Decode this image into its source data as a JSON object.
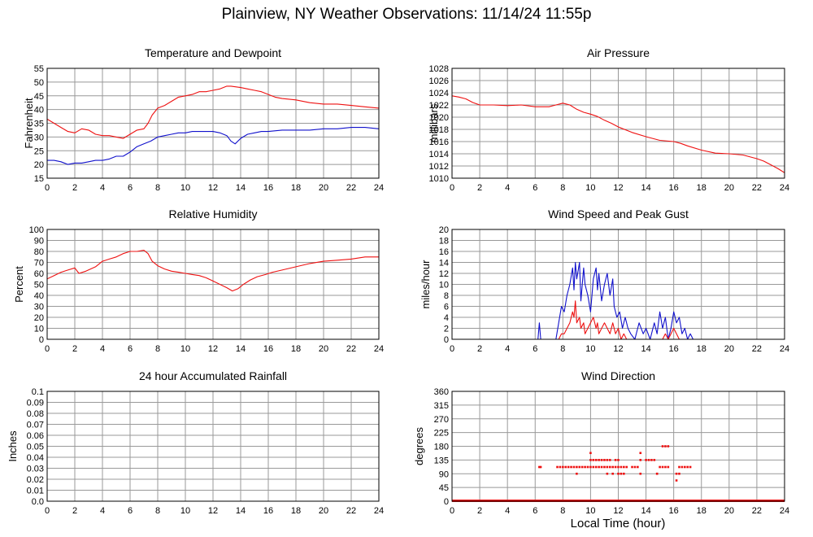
{
  "page": {
    "title": "Plainview, NY Weather Observations: 11/14/24 11:55p",
    "xlabel": "Local Time (hour)"
  },
  "colors": {
    "primary": "#ee1111",
    "secondary": "#1111cc",
    "grid": "#999999"
  },
  "chart_data": [
    {
      "type": "line",
      "title": "Temperature and Dewpoint",
      "ylabel": "Fahrenheit",
      "xlim": [
        0,
        24
      ],
      "ylim": [
        15,
        55
      ],
      "xticks": [
        0,
        2,
        4,
        6,
        8,
        10,
        12,
        14,
        16,
        18,
        20,
        22,
        24
      ],
      "yticks": [
        15,
        20,
        25,
        30,
        35,
        40,
        45,
        50,
        55
      ],
      "grid": true,
      "series": [
        {
          "color": "#ee1111",
          "x": [
            0,
            0.5,
            1,
            1.5,
            2,
            2.5,
            3,
            3.5,
            4,
            4.5,
            5,
            5.5,
            6,
            6.5,
            7,
            7.3,
            7.6,
            8,
            8.5,
            9,
            9.5,
            10,
            10.5,
            11,
            11.5,
            12,
            12.5,
            13,
            13.3,
            14,
            14.5,
            15,
            15.5,
            16,
            16.5,
            17,
            18,
            19,
            20,
            21,
            22,
            23,
            24
          ],
          "y": [
            36.5,
            35,
            33.5,
            32,
            31.5,
            33,
            32.5,
            31,
            30.5,
            30.5,
            30,
            29.5,
            31,
            32.5,
            33,
            35,
            38,
            40.5,
            41.5,
            43,
            44.5,
            45,
            45.5,
            46.5,
            46.5,
            47,
            47.5,
            48.5,
            48.5,
            48,
            47.5,
            47,
            46.5,
            45.5,
            44.5,
            44,
            43.5,
            42.5,
            42,
            42,
            41.5,
            41,
            40.5
          ]
        },
        {
          "color": "#1111cc",
          "x": [
            0,
            0.5,
            1,
            1.5,
            2,
            2.5,
            3,
            3.5,
            4,
            4.5,
            5,
            5.5,
            6,
            6.5,
            7,
            7.5,
            8,
            8.5,
            9,
            9.5,
            10,
            10.5,
            11,
            11.5,
            12,
            12.5,
            13,
            13.3,
            13.6,
            14,
            14.5,
            15,
            15.5,
            16,
            17,
            18,
            19,
            20,
            21,
            22,
            23,
            24
          ],
          "y": [
            21.5,
            21.5,
            21,
            20,
            20.5,
            20.5,
            21,
            21.5,
            21.5,
            22,
            23,
            23,
            24.5,
            26.5,
            27.5,
            28.5,
            30,
            30.5,
            31,
            31.5,
            31.5,
            32,
            32,
            32,
            32,
            31.5,
            30.5,
            28.5,
            27.5,
            29.5,
            31,
            31.5,
            32,
            32,
            32.5,
            32.5,
            32.5,
            33,
            33,
            33.5,
            33.5,
            33
          ]
        }
      ]
    },
    {
      "type": "line",
      "title": "Air Pressure",
      "ylabel": "millibars",
      "xlim": [
        0,
        24
      ],
      "ylim": [
        1010,
        1028
      ],
      "xticks": [
        0,
        2,
        4,
        6,
        8,
        10,
        12,
        14,
        16,
        18,
        20,
        22,
        24
      ],
      "yticks": [
        1010,
        1012,
        1014,
        1016,
        1018,
        1020,
        1022,
        1024,
        1026,
        1028
      ],
      "grid": true,
      "series": [
        {
          "color": "#ee1111",
          "x": [
            0,
            0.5,
            1,
            1.5,
            2,
            3,
            4,
            5,
            6,
            7,
            7.5,
            8,
            8.5,
            9,
            9.5,
            10,
            10.5,
            11,
            11.5,
            12,
            13,
            14,
            15,
            16,
            16.5,
            17,
            18,
            19,
            20,
            21,
            22,
            22.5,
            23,
            23.5,
            24
          ],
          "y": [
            1023.5,
            1023.3,
            1023,
            1022.4,
            1022,
            1022,
            1021.9,
            1022,
            1021.7,
            1021.7,
            1022,
            1022.3,
            1022,
            1021.3,
            1020.8,
            1020.5,
            1020.1,
            1019.5,
            1019,
            1018.4,
            1017.5,
            1016.8,
            1016.2,
            1016,
            1015.7,
            1015.3,
            1014.6,
            1014.1,
            1014,
            1013.8,
            1013.2,
            1012.8,
            1012.2,
            1011.6,
            1010.9
          ]
        }
      ]
    },
    {
      "type": "line",
      "title": "Relative Humidity",
      "ylabel": "Percent",
      "xlim": [
        0,
        24
      ],
      "ylim": [
        0,
        100
      ],
      "xticks": [
        0,
        2,
        4,
        6,
        8,
        10,
        12,
        14,
        16,
        18,
        20,
        22,
        24
      ],
      "yticks": [
        0,
        10,
        20,
        30,
        40,
        50,
        60,
        70,
        80,
        90,
        100
      ],
      "grid": true,
      "series": [
        {
          "color": "#ee1111",
          "x": [
            0,
            0.5,
            1,
            1.5,
            2,
            2.3,
            2.8,
            3.5,
            4,
            4.5,
            5,
            5.5,
            6,
            6.5,
            7,
            7.3,
            7.6,
            8,
            8.5,
            9,
            9.5,
            10,
            10.5,
            11,
            11.5,
            12,
            12.5,
            13,
            13.4,
            13.8,
            14.2,
            14.7,
            15.2,
            15.8,
            16.3,
            17,
            18,
            19,
            20,
            21,
            22,
            23,
            24
          ],
          "y": [
            55,
            58,
            61,
            63,
            65,
            60,
            62,
            66,
            71,
            73,
            75,
            78,
            80,
            80,
            81,
            78,
            71,
            67,
            64,
            62,
            61,
            60,
            59,
            58,
            56,
            53,
            50,
            47,
            44,
            46,
            50,
            54,
            57,
            59,
            61,
            63,
            66,
            69,
            71,
            72,
            73,
            75,
            75
          ]
        }
      ]
    },
    {
      "type": "line",
      "title": "Wind Speed and Peak Gust",
      "ylabel": "miles/hour",
      "xlim": [
        0,
        24
      ],
      "ylim": [
        0,
        20
      ],
      "xticks": [
        0,
        2,
        4,
        6,
        8,
        10,
        12,
        14,
        16,
        18,
        20,
        22,
        24
      ],
      "yticks": [
        0,
        2,
        4,
        6,
        8,
        10,
        12,
        14,
        16,
        18,
        20
      ],
      "grid": true,
      "series": [
        {
          "color": "#1111cc",
          "x": [
            0,
            6.2,
            6.3,
            6.4,
            7.5,
            7.7,
            7.9,
            8.1,
            8.3,
            8.5,
            8.7,
            8.8,
            8.9,
            9.0,
            9.2,
            9.3,
            9.5,
            9.6,
            9.8,
            10.0,
            10.2,
            10.4,
            10.5,
            10.6,
            10.8,
            11.0,
            11.2,
            11.4,
            11.6,
            11.7,
            11.9,
            12.1,
            12.3,
            12.5,
            12.7,
            12.9,
            13.2,
            13.5,
            13.8,
            14.0,
            14.3,
            14.6,
            14.8,
            15.0,
            15.2,
            15.4,
            15.6,
            15.8,
            16.0,
            16.2,
            16.4,
            16.6,
            16.8,
            17.0,
            17.2,
            17.4,
            24
          ],
          "y": [
            0,
            0,
            3,
            0,
            0,
            3,
            6,
            5,
            8,
            10,
            13,
            9,
            14,
            11,
            14,
            7,
            13,
            10,
            8,
            5,
            11,
            13,
            9,
            12,
            7,
            10,
            12,
            8,
            11,
            6,
            4,
            5,
            2,
            4,
            2,
            1,
            0,
            3,
            1,
            2,
            0,
            3,
            1,
            5,
            2,
            4,
            0,
            2,
            5,
            3,
            4,
            1,
            2,
            0,
            1,
            0,
            0
          ]
        },
        {
          "color": "#ee1111",
          "x": [
            0,
            7.7,
            7.9,
            8.1,
            8.3,
            8.5,
            8.7,
            8.8,
            8.9,
            9.0,
            9.2,
            9.3,
            9.5,
            9.6,
            9.8,
            10.0,
            10.2,
            10.4,
            10.5,
            10.6,
            10.8,
            11.0,
            11.2,
            11.4,
            11.6,
            11.8,
            12.0,
            12.2,
            12.4,
            12.6,
            15.2,
            15.4,
            15.6,
            15.8,
            16.0,
            16.2,
            16.4,
            24
          ],
          "y": [
            0,
            0,
            1,
            1,
            2,
            3,
            5,
            4,
            7,
            3,
            4,
            2,
            3,
            1,
            2,
            3,
            4,
            2,
            3,
            1,
            2,
            3,
            2,
            1,
            3,
            1,
            2,
            0,
            1,
            0,
            0,
            1,
            0,
            1,
            2,
            1,
            0,
            0
          ]
        }
      ]
    },
    {
      "type": "line",
      "title": "24 hour Accumulated Rainfall",
      "ylabel": "Inches",
      "xlim": [
        0,
        24
      ],
      "ylim": [
        0,
        0.1
      ],
      "xticks": [
        0,
        2,
        4,
        6,
        8,
        10,
        12,
        14,
        16,
        18,
        20,
        22,
        24
      ],
      "yticks": [
        0.0,
        0.01,
        0.02,
        0.03,
        0.04,
        0.05,
        0.06,
        0.07,
        0.08,
        0.09,
        0.1
      ],
      "ytick_labels": [
        "0.0",
        "0.01",
        "0.02",
        "0.03",
        "0.04",
        "0.05",
        "0.06",
        "0.07",
        "0.08",
        "0.09",
        "0.1"
      ],
      "grid": true,
      "series": [
        {
          "color": "#ee1111",
          "x": [
            0,
            24
          ],
          "y": [
            0,
            0
          ]
        }
      ]
    },
    {
      "type": "scatter",
      "title": "Wind Direction",
      "ylabel": "degrees",
      "xlim": [
        0,
        24
      ],
      "ylim": [
        0,
        360
      ],
      "xticks": [
        0,
        2,
        4,
        6,
        8,
        10,
        12,
        14,
        16,
        18,
        20,
        22,
        24
      ],
      "yticks": [
        0,
        45,
        90,
        135,
        180,
        225,
        270,
        315,
        360
      ],
      "grid": true,
      "series": [
        {
          "color": "#ee1111",
          "x": [
            6.3,
            6.4,
            7.6,
            7.8,
            8.0,
            8.2,
            8.4,
            8.6,
            8.8,
            9.0,
            9.2,
            9.4,
            9.6,
            9.8,
            10.0,
            10.2,
            10.4,
            10.6,
            10.8,
            11.0,
            11.2,
            11.4,
            11.6,
            11.8,
            12.0,
            12.2,
            12.4,
            12.6,
            13.0,
            13.2,
            13.4,
            15.0,
            15.2,
            15.4,
            15.6,
            16.4,
            16.6,
            16.8,
            17.0,
            17.2,
            9.0,
            10.0,
            10.2,
            10.4,
            10.6,
            10.8,
            11.0,
            11.2,
            11.4,
            11.8,
            12.0,
            13.6,
            14.0,
            14.2,
            14.4,
            14.6,
            14.8,
            15.2,
            15.4,
            15.6,
            11.2,
            11.6,
            12.0,
            12.2,
            12.4,
            13.6,
            14.8,
            16.2,
            16.4,
            16.2,
            10.0,
            13.6
          ],
          "y": [
            112,
            112,
            112,
            112,
            112,
            112,
            112,
            112,
            112,
            112,
            112,
            112,
            112,
            112,
            112,
            112,
            112,
            112,
            112,
            112,
            112,
            112,
            112,
            112,
            112,
            112,
            112,
            112,
            112,
            112,
            112,
            112,
            112,
            112,
            112,
            112,
            112,
            112,
            112,
            112,
            90,
            135,
            135,
            135,
            135,
            135,
            135,
            135,
            135,
            135,
            135,
            135,
            135,
            135,
            135,
            135,
            90,
            180,
            180,
            180,
            90,
            90,
            90,
            90,
            90,
            90,
            90,
            90,
            90,
            68,
            158,
            158
          ]
        },
        {
          "color": "#ee1111",
          "kind": "baseline",
          "x": [
            0,
            7.5,
            12.0,
            12.4,
            13.2,
            13.6,
            15.8,
            16.6,
            17.4,
            24
          ],
          "y": [
            0,
            0,
            0,
            0,
            0,
            0,
            0,
            0,
            0,
            0
          ]
        }
      ]
    }
  ]
}
